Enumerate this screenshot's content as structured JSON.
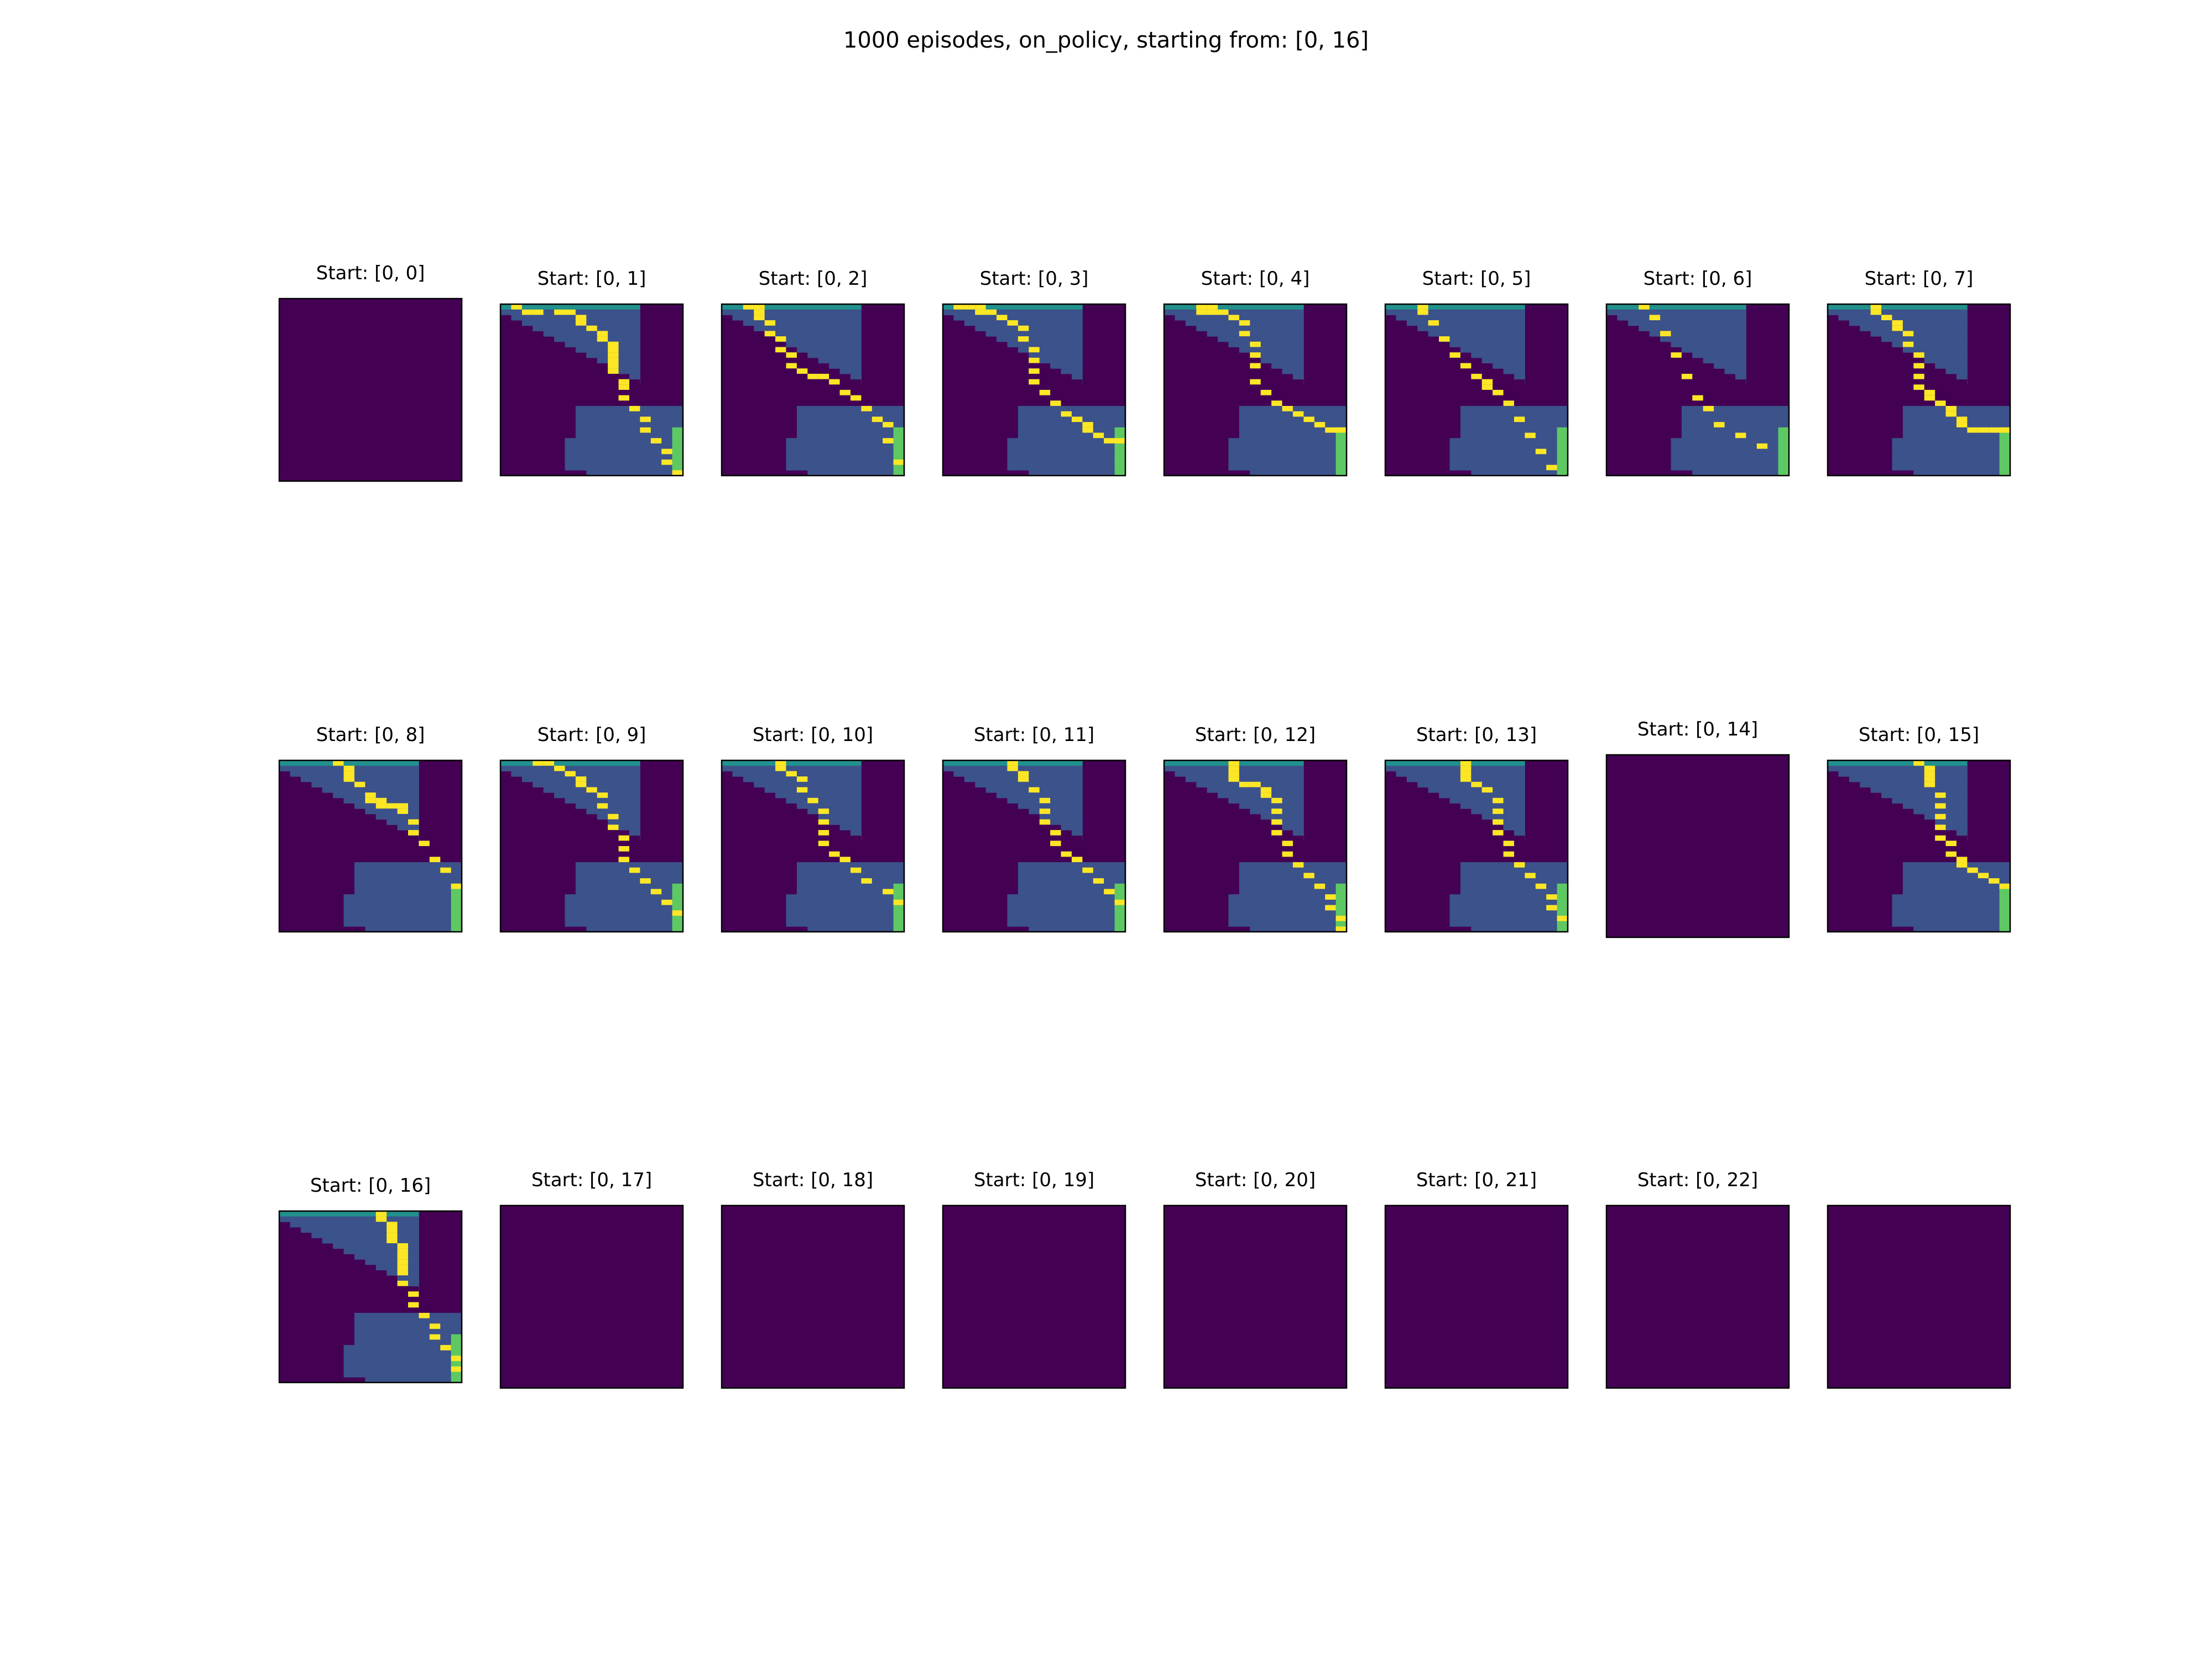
{
  "figure": {
    "title": "1000 episodes, on_policy, starting from: [0, 16]"
  },
  "colors": {
    "wall": "#440154",
    "track": "#3b528b",
    "start_line": "#21918c",
    "finish_line": "#5ec962",
    "path": "#fde725",
    "frame": "#000000"
  },
  "chart_data": {
    "type": "heatmap",
    "grid": {
      "rows": 32,
      "cols": 17,
      "grid_lines": false,
      "axes_visible": false
    },
    "track_rows": [
      [
        0,
        12
      ],
      [
        0,
        12
      ],
      [
        1,
        12
      ],
      [
        2,
        12
      ],
      [
        3,
        12
      ],
      [
        4,
        12
      ],
      [
        5,
        12
      ],
      [
        6,
        12
      ],
      [
        7,
        12
      ],
      [
        8,
        12
      ],
      [
        9,
        12
      ],
      [
        10,
        12
      ],
      [
        11,
        12
      ],
      [
        12,
        12
      ],
      [
        13,
        12
      ],
      [
        14,
        12
      ],
      [
        15,
        12
      ],
      [
        16,
        12
      ],
      [
        17,
        12
      ],
      [
        7,
        16
      ],
      [
        7,
        16
      ],
      [
        7,
        16
      ],
      [
        7,
        16
      ],
      [
        7,
        16
      ],
      [
        7,
        16
      ],
      [
        6,
        16
      ],
      [
        6,
        16
      ],
      [
        6,
        16
      ],
      [
        6,
        16
      ],
      [
        6,
        16
      ],
      [
        6,
        16
      ],
      [
        8,
        16
      ]
    ],
    "start_line": {
      "row": 0,
      "cols": [
        0,
        12
      ]
    },
    "finish_line": {
      "col": 16,
      "rows": [
        23,
        31
      ]
    },
    "panels": [
      {
        "title": "Start: [0, 0]",
        "path": []
      },
      {
        "title": "Start: [0, 1]",
        "path": [
          [
            0,
            1
          ],
          [
            1,
            2
          ],
          [
            1,
            3
          ],
          [
            1,
            5
          ],
          [
            1,
            6
          ],
          [
            2,
            7
          ],
          [
            3,
            7
          ],
          [
            4,
            8
          ],
          [
            5,
            9
          ],
          [
            6,
            9
          ],
          [
            7,
            10
          ],
          [
            8,
            10
          ],
          [
            9,
            10
          ],
          [
            10,
            10
          ],
          [
            11,
            10
          ],
          [
            12,
            10
          ],
          [
            14,
            11
          ],
          [
            15,
            11
          ],
          [
            17,
            11
          ],
          [
            19,
            12
          ],
          [
            21,
            13
          ],
          [
            23,
            13
          ],
          [
            25,
            14
          ],
          [
            27,
            15
          ],
          [
            29,
            15
          ],
          [
            31,
            16
          ]
        ]
      },
      {
        "title": "Start: [0, 2]",
        "path": [
          [
            0,
            2
          ],
          [
            0,
            3
          ],
          [
            1,
            3
          ],
          [
            2,
            3
          ],
          [
            3,
            4
          ],
          [
            5,
            4
          ],
          [
            6,
            5
          ],
          [
            8,
            5
          ],
          [
            9,
            6
          ],
          [
            11,
            6
          ],
          [
            12,
            7
          ],
          [
            13,
            8
          ],
          [
            13,
            9
          ],
          [
            14,
            10
          ],
          [
            16,
            11
          ],
          [
            17,
            12
          ],
          [
            19,
            13
          ],
          [
            21,
            14
          ],
          [
            22,
            15
          ],
          [
            25,
            15
          ],
          [
            29,
            16
          ]
        ]
      },
      {
        "title": "Start: [0, 3]",
        "path": [
          [
            0,
            1
          ],
          [
            0,
            2
          ],
          [
            0,
            3
          ],
          [
            1,
            3
          ],
          [
            1,
            4
          ],
          [
            2,
            5
          ],
          [
            3,
            6
          ],
          [
            4,
            7
          ],
          [
            6,
            7
          ],
          [
            8,
            8
          ],
          [
            10,
            8
          ],
          [
            12,
            8
          ],
          [
            14,
            8
          ],
          [
            16,
            9
          ],
          [
            18,
            10
          ],
          [
            20,
            11
          ],
          [
            21,
            12
          ],
          [
            22,
            13
          ],
          [
            23,
            13
          ],
          [
            24,
            14
          ],
          [
            25,
            15
          ],
          [
            25,
            16
          ]
        ]
      },
      {
        "title": "Start: [0, 4]",
        "path": [
          [
            0,
            3
          ],
          [
            0,
            4
          ],
          [
            1,
            3
          ],
          [
            1,
            4
          ],
          [
            1,
            5
          ],
          [
            2,
            6
          ],
          [
            3,
            7
          ],
          [
            5,
            7
          ],
          [
            7,
            8
          ],
          [
            9,
            8
          ],
          [
            11,
            8
          ],
          [
            14,
            8
          ],
          [
            16,
            9
          ],
          [
            18,
            10
          ],
          [
            19,
            11
          ],
          [
            20,
            12
          ],
          [
            21,
            13
          ],
          [
            22,
            14
          ],
          [
            23,
            15
          ],
          [
            23,
            16
          ]
        ]
      },
      {
        "title": "Start: [0, 5]",
        "path": [
          [
            0,
            3
          ],
          [
            1,
            3
          ],
          [
            3,
            4
          ],
          [
            6,
            5
          ],
          [
            9,
            6
          ],
          [
            11,
            7
          ],
          [
            13,
            8
          ],
          [
            14,
            9
          ],
          [
            15,
            9
          ],
          [
            16,
            10
          ],
          [
            18,
            11
          ],
          [
            21,
            12
          ],
          [
            24,
            13
          ],
          [
            27,
            14
          ],
          [
            30,
            15
          ]
        ]
      },
      {
        "title": "Start: [0, 6]",
        "path": [
          [
            0,
            3
          ],
          [
            2,
            4
          ],
          [
            5,
            5
          ],
          [
            9,
            6
          ],
          [
            13,
            7
          ],
          [
            17,
            8
          ],
          [
            19,
            9
          ],
          [
            22,
            10
          ],
          [
            24,
            12
          ],
          [
            26,
            14
          ]
        ]
      },
      {
        "title": "Start: [0, 7]",
        "path": [
          [
            0,
            4
          ],
          [
            1,
            4
          ],
          [
            2,
            5
          ],
          [
            3,
            6
          ],
          [
            4,
            6
          ],
          [
            5,
            7
          ],
          [
            7,
            7
          ],
          [
            9,
            8
          ],
          [
            11,
            8
          ],
          [
            13,
            8
          ],
          [
            15,
            8
          ],
          [
            16,
            9
          ],
          [
            17,
            9
          ],
          [
            18,
            10
          ],
          [
            19,
            11
          ],
          [
            20,
            11
          ],
          [
            21,
            12
          ],
          [
            22,
            12
          ],
          [
            23,
            13
          ],
          [
            23,
            14
          ],
          [
            23,
            15
          ],
          [
            23,
            16
          ]
        ]
      },
      {
        "title": "Start: [0, 8]",
        "path": [
          [
            0,
            5
          ],
          [
            1,
            6
          ],
          [
            2,
            6
          ],
          [
            3,
            6
          ],
          [
            4,
            7
          ],
          [
            6,
            8
          ],
          [
            7,
            8
          ],
          [
            7,
            9
          ],
          [
            8,
            9
          ],
          [
            8,
            10
          ],
          [
            8,
            11
          ],
          [
            9,
            11
          ],
          [
            11,
            12
          ],
          [
            13,
            12
          ],
          [
            15,
            13
          ],
          [
            18,
            14
          ],
          [
            20,
            15
          ],
          [
            23,
            16
          ]
        ]
      },
      {
        "title": "Start: [0, 9]",
        "path": [
          [
            0,
            3
          ],
          [
            0,
            4
          ],
          [
            1,
            5
          ],
          [
            2,
            6
          ],
          [
            3,
            7
          ],
          [
            4,
            7
          ],
          [
            5,
            8
          ],
          [
            6,
            9
          ],
          [
            8,
            9
          ],
          [
            10,
            10
          ],
          [
            12,
            10
          ],
          [
            14,
            11
          ],
          [
            16,
            11
          ],
          [
            18,
            11
          ],
          [
            20,
            12
          ],
          [
            22,
            13
          ],
          [
            24,
            14
          ],
          [
            26,
            15
          ],
          [
            28,
            16
          ]
        ]
      },
      {
        "title": "Start: [0, 10]",
        "path": [
          [
            0,
            5
          ],
          [
            1,
            5
          ],
          [
            2,
            6
          ],
          [
            3,
            7
          ],
          [
            5,
            7
          ],
          [
            7,
            8
          ],
          [
            9,
            9
          ],
          [
            11,
            9
          ],
          [
            13,
            9
          ],
          [
            15,
            9
          ],
          [
            17,
            10
          ],
          [
            18,
            11
          ],
          [
            20,
            12
          ],
          [
            22,
            13
          ],
          [
            24,
            15
          ],
          [
            26,
            16
          ]
        ]
      },
      {
        "title": "Start: [0, 11]",
        "path": [
          [
            0,
            6
          ],
          [
            1,
            6
          ],
          [
            2,
            7
          ],
          [
            3,
            7
          ],
          [
            5,
            8
          ],
          [
            7,
            9
          ],
          [
            9,
            9
          ],
          [
            11,
            9
          ],
          [
            13,
            10
          ],
          [
            15,
            10
          ],
          [
            17,
            11
          ],
          [
            18,
            12
          ],
          [
            20,
            13
          ],
          [
            22,
            14
          ],
          [
            24,
            15
          ],
          [
            26,
            16
          ]
        ]
      },
      {
        "title": "Start: [0, 12]",
        "path": [
          [
            0,
            6
          ],
          [
            1,
            6
          ],
          [
            2,
            6
          ],
          [
            3,
            6
          ],
          [
            4,
            7
          ],
          [
            4,
            8
          ],
          [
            5,
            9
          ],
          [
            6,
            9
          ],
          [
            7,
            10
          ],
          [
            9,
            10
          ],
          [
            11,
            10
          ],
          [
            13,
            10
          ],
          [
            15,
            11
          ],
          [
            17,
            11
          ],
          [
            19,
            12
          ],
          [
            21,
            13
          ],
          [
            23,
            14
          ],
          [
            25,
            15
          ],
          [
            27,
            15
          ],
          [
            29,
            16
          ],
          [
            31,
            16
          ]
        ]
      },
      {
        "title": "Start: [0, 13]",
        "path": [
          [
            0,
            7
          ],
          [
            1,
            7
          ],
          [
            2,
            7
          ],
          [
            3,
            7
          ],
          [
            4,
            8
          ],
          [
            5,
            9
          ],
          [
            7,
            10
          ],
          [
            9,
            10
          ],
          [
            11,
            10
          ],
          [
            13,
            10
          ],
          [
            15,
            11
          ],
          [
            17,
            11
          ],
          [
            19,
            12
          ],
          [
            21,
            13
          ],
          [
            23,
            14
          ],
          [
            25,
            15
          ],
          [
            27,
            15
          ],
          [
            29,
            16
          ]
        ]
      },
      {
        "title": "Start: [0, 14]",
        "path": []
      },
      {
        "title": "Start: [0, 15]",
        "path": [
          [
            0,
            8
          ],
          [
            1,
            9
          ],
          [
            2,
            9
          ],
          [
            3,
            9
          ],
          [
            4,
            9
          ],
          [
            6,
            10
          ],
          [
            8,
            10
          ],
          [
            10,
            10
          ],
          [
            12,
            10
          ],
          [
            14,
            10
          ],
          [
            15,
            11
          ],
          [
            17,
            11
          ],
          [
            18,
            12
          ],
          [
            19,
            12
          ],
          [
            20,
            13
          ],
          [
            21,
            14
          ],
          [
            22,
            15
          ],
          [
            23,
            16
          ]
        ]
      },
      {
        "title": "Start: [0, 16]",
        "path": [
          [
            0,
            9
          ],
          [
            1,
            9
          ],
          [
            2,
            10
          ],
          [
            3,
            10
          ],
          [
            4,
            10
          ],
          [
            5,
            10
          ],
          [
            6,
            11
          ],
          [
            7,
            11
          ],
          [
            8,
            11
          ],
          [
            9,
            11
          ],
          [
            10,
            11
          ],
          [
            11,
            11
          ],
          [
            13,
            11
          ],
          [
            15,
            12
          ],
          [
            17,
            12
          ],
          [
            19,
            13
          ],
          [
            21,
            14
          ],
          [
            23,
            14
          ],
          [
            25,
            15
          ],
          [
            27,
            16
          ],
          [
            29,
            16
          ]
        ]
      },
      {
        "title": "Start: [0, 17]",
        "path": []
      },
      {
        "title": "Start: [0, 18]",
        "path": []
      },
      {
        "title": "Start: [0, 19]",
        "path": []
      },
      {
        "title": "Start: [0, 20]",
        "path": []
      },
      {
        "title": "Start: [0, 21]",
        "path": []
      },
      {
        "title": "Start: [0, 22]",
        "path": []
      },
      {
        "title": "",
        "path": []
      }
    ]
  }
}
